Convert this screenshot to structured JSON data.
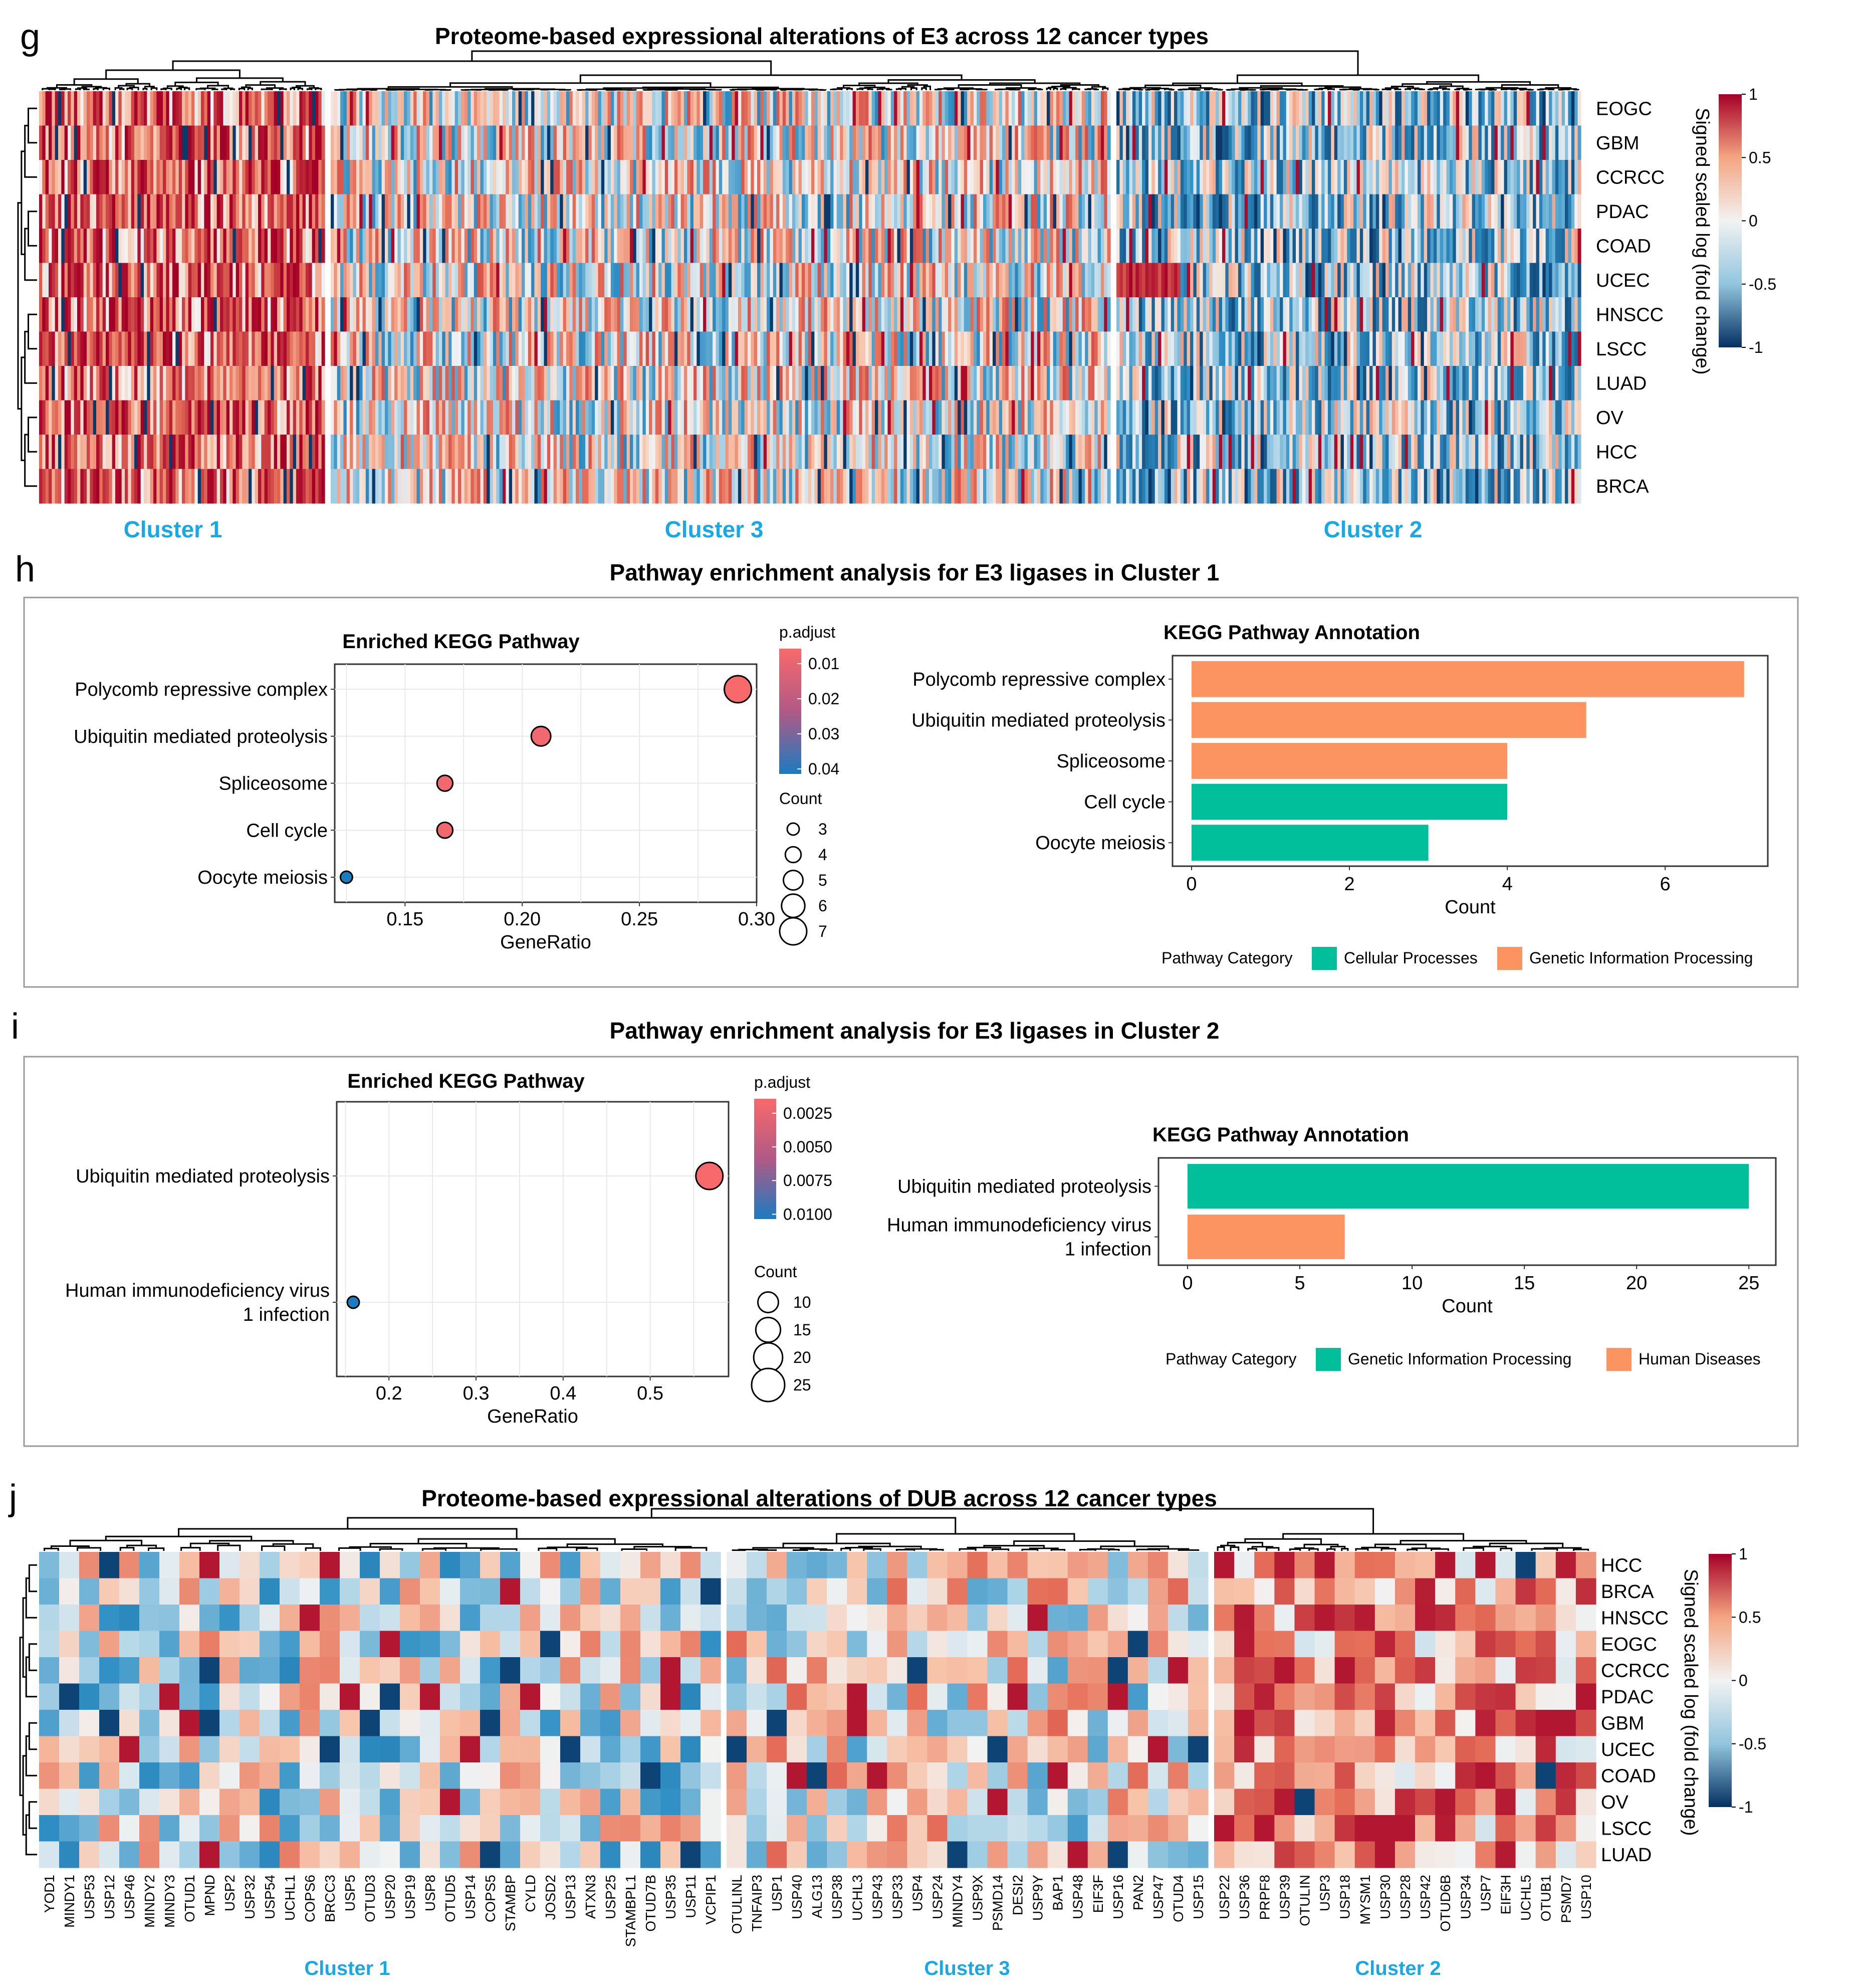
{
  "colors": {
    "cluster_label": "#1aa7e6",
    "heat_low": "#053061",
    "heat_mid": "#f2f2f2",
    "heat_high": "#a50026",
    "teal": "#00bf9a",
    "orange": "#fb9461",
    "grad_high": "#f8696b",
    "grad_low": "#1b7bc0"
  },
  "panel_g": {
    "letter": "g",
    "title": "Proteome-based expressional alterations of E3 across 12 cancer types",
    "rows": [
      "EOGC",
      "GBM",
      "CCRCC",
      "PDAC",
      "COAD",
      "UCEC",
      "HNSCC",
      "LSCC",
      "LUAD",
      "OV",
      "HCC",
      "BRCA"
    ],
    "clusters": [
      "Cluster 1",
      "Cluster 3",
      "Cluster 2"
    ],
    "cluster_sizes": [
      90,
      245,
      145
    ],
    "colorbar_title": "Signed scaled log (fold change)",
    "colorbar_ticks": [
      "1",
      "0.5",
      "0",
      "-0.5",
      "-1"
    ]
  },
  "panel_h": {
    "letter": "h",
    "title": "Pathway enrichment analysis for E3 ligases in Cluster 1",
    "dot": {
      "subtitle": "Enriched KEGG Pathway",
      "xlabel": "GeneRatio",
      "xticks": [
        "0.15",
        "0.20",
        "0.25",
        "0.30"
      ],
      "xlim": [
        0.12,
        0.3
      ],
      "pathways": [
        "Polycomb repressive complex",
        "Ubiquitin mediated proteolysis",
        "Spliceosome",
        "Cell cycle",
        "Oocyte meiosis"
      ],
      "gene_ratio": [
        0.292,
        0.208,
        0.167,
        0.167,
        0.125
      ],
      "count": [
        7,
        5,
        4,
        4,
        3
      ],
      "p_adjust": [
        0.002,
        0.004,
        0.004,
        0.004,
        0.045
      ],
      "padj_title": "p.adjust",
      "padj_ticks": [
        "0.01",
        "0.02",
        "0.03",
        "0.04"
      ],
      "count_title": "Count",
      "count_ticks": [
        "3",
        "4",
        "5",
        "6",
        "7"
      ]
    },
    "bar": {
      "subtitle": "KEGG Pathway Annotation",
      "xlabel": "Count",
      "xticks": [
        "0",
        "2",
        "4",
        "6"
      ],
      "xlim": [
        0,
        7.3
      ],
      "pathways": [
        "Polycomb repressive complex",
        "Ubiquitin mediated proteolysis",
        "Spliceosome",
        "Cell cycle",
        "Oocyte meiosis"
      ],
      "values": [
        7,
        5,
        4,
        4,
        3
      ],
      "category": [
        "Genetic Information Processing",
        "Genetic Information Processing",
        "Genetic Information Processing",
        "Cellular Processes",
        "Cellular Processes"
      ],
      "legend_title": "Pathway Category",
      "legend": [
        "Cellular Processes",
        "Genetic Information Processing"
      ]
    }
  },
  "panel_i": {
    "letter": "i",
    "title": "Pathway enrichment analysis for E3 ligases in Cluster 2",
    "dot": {
      "subtitle": "Enriched KEGG Pathway",
      "xlabel": "GeneRatio",
      "xticks": [
        "0.2",
        "0.3",
        "0.4",
        "0.5"
      ],
      "xlim": [
        0.14,
        0.59
      ],
      "pathways": [
        "Ubiquitin mediated proteolysis",
        "Human immunodeficiency virus 1 infection"
      ],
      "pathway_lines": [
        [
          "Ubiquitin mediated proteolysis"
        ],
        [
          "Human immunodeficiency virus",
          "1 infection"
        ]
      ],
      "gene_ratio": [
        0.568,
        0.159
      ],
      "count": [
        25,
        7
      ],
      "p_adjust": [
        0.0001,
        0.0102
      ],
      "padj_title": "p.adjust",
      "padj_ticks": [
        "0.0025",
        "0.0050",
        "0.0075",
        "0.0100"
      ],
      "count_title": "Count",
      "count_ticks": [
        "10",
        "15",
        "20",
        "25"
      ]
    },
    "bar": {
      "subtitle": "KEGG Pathway Annotation",
      "xlabel": "Count",
      "xticks": [
        "0",
        "5",
        "10",
        "15",
        "20",
        "25"
      ],
      "xlim": [
        0,
        26.2
      ],
      "pathways": [
        "Ubiquitin mediated proteolysis",
        "Human immunodeficiency virus 1 infection"
      ],
      "pathway_lines": [
        [
          "Ubiquitin mediated proteolysis"
        ],
        [
          "Human immunodeficiency virus",
          "1 infection"
        ]
      ],
      "values": [
        25,
        7
      ],
      "category": [
        "Genetic Information Processing",
        "Human Diseases"
      ],
      "legend_title": "Pathway Category",
      "legend": [
        "Genetic Information Processing",
        "Human Diseases"
      ]
    }
  },
  "panel_j": {
    "letter": "j",
    "title": "Proteome-based expressional alterations of DUB across 12 cancer types",
    "rows": [
      "HCC",
      "BRCA",
      "HNSCC",
      "EOGC",
      "CCRCC",
      "PDAC",
      "GBM",
      "UCEC",
      "COAD",
      "OV",
      "LSCC",
      "LUAD"
    ],
    "columns": [
      "YOD1",
      "MINDY1",
      "USP53",
      "USP12",
      "USP46",
      "MINDY2",
      "MINDY3",
      "OTUD1",
      "MPND",
      "USP2",
      "USP32",
      "USP54",
      "UCHL1",
      "COPS6",
      "BRCC3",
      "USP5",
      "OTUD3",
      "USP20",
      "USP19",
      "USP8",
      "OTUD5",
      "USP14",
      "COPS5",
      "STAMBP",
      "CYLD",
      "JOSD2",
      "USP13",
      "ATXN3",
      "USP25",
      "STAMBPL1",
      "OTUD7B",
      "USP35",
      "USP11",
      "VCPIP1",
      "OTULINL",
      "TNFAIP3",
      "USP1",
      "USP40",
      "ALG13",
      "USP38",
      "UCHL3",
      "USP43",
      "USP33",
      "USP4",
      "USP24",
      "MINDY4",
      "USP9X",
      "PSMD14",
      "DESI2",
      "USP9Y",
      "BAP1",
      "USP48",
      "EIF3F",
      "USP16",
      "PAN2",
      "USP47",
      "OTUD4",
      "USP15",
      "USP22",
      "USP36",
      "PRPF8",
      "USP39",
      "OTULIN",
      "USP3",
      "USP18",
      "MYSM1",
      "USP30",
      "USP28",
      "USP42",
      "OTUD6B",
      "USP34",
      "USP7",
      "EIF3H",
      "UCHL5",
      "OTUB1",
      "PSMD7",
      "USP10"
    ],
    "clusters": [
      "Cluster 1",
      "Cluster 3",
      "Cluster 2"
    ],
    "cluster_sizes": [
      34,
      24,
      19
    ],
    "colorbar_title": "Signed scaled log (fold change)",
    "colorbar_ticks": [
      "1",
      "0.5",
      "0",
      "-0.5",
      "-1"
    ]
  }
}
